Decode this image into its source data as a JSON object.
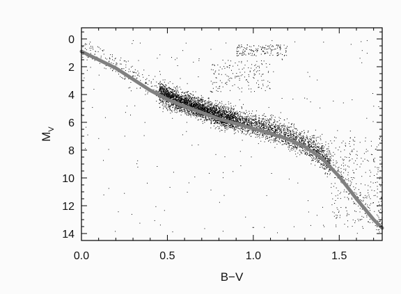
{
  "chart_data": {
    "type": "scatter",
    "title": "",
    "xlabel": "B−V",
    "ylabel": {
      "main": "M",
      "subscript": "V"
    },
    "xlim": [
      0.0,
      1.75
    ],
    "ylim": [
      14.5,
      -0.8
    ],
    "y_inverted": true,
    "x_ticks": [
      0.0,
      0.5,
      1.0,
      1.5
    ],
    "x_tick_labels": [
      "0.0",
      "0.5",
      "1.0",
      "1.5"
    ],
    "y_ticks": [
      0,
      2,
      4,
      6,
      8,
      10,
      12,
      14
    ],
    "y_tick_labels": [
      "0",
      "2",
      "4",
      "6",
      "8",
      "10",
      "12",
      "14"
    ],
    "grid": false,
    "legend": "none",
    "series": [
      {
        "kind": "points",
        "color": "#000000",
        "description_density": [
          {
            "bv": 0.0,
            "mv": 1.0
          },
          {
            "bv": 0.2,
            "mv": 2.0
          },
          {
            "bv": 0.4,
            "mv": 3.3
          },
          {
            "bv": 0.55,
            "mv": 4.6
          },
          {
            "bv": 0.7,
            "mv": 5.4
          },
          {
            "bv": 0.9,
            "mv": 6.1
          },
          {
            "bv": 1.1,
            "mv": 6.7
          },
          {
            "bv": 1.3,
            "mv": 7.6
          },
          {
            "bv": 1.45,
            "mv": 9.1
          },
          {
            "bv": 1.55,
            "mv": 10.5
          }
        ],
        "giant_clump": {
          "bv_range": [
            0.9,
            1.2
          ],
          "mv_range": [
            0.4,
            1.2
          ]
        },
        "red_giant_branch": {
          "bv_range": [
            0.75,
            1.1
          ],
          "mv_range": [
            1.5,
            3.8
          ]
        }
      },
      {
        "kind": "line",
        "color": "#808080",
        "points": [
          [
            0.0,
            0.9
          ],
          [
            0.1,
            1.5
          ],
          [
            0.2,
            2.1
          ],
          [
            0.3,
            2.9
          ],
          [
            0.4,
            3.7
          ],
          [
            0.5,
            4.35
          ],
          [
            0.6,
            4.85
          ],
          [
            0.7,
            5.3
          ],
          [
            0.8,
            5.75
          ],
          [
            0.9,
            6.1
          ],
          [
            1.0,
            6.45
          ],
          [
            1.1,
            6.8
          ],
          [
            1.2,
            7.2
          ],
          [
            1.3,
            7.75
          ],
          [
            1.4,
            8.6
          ],
          [
            1.5,
            9.9
          ],
          [
            1.6,
            11.5
          ],
          [
            1.7,
            13.0
          ],
          [
            1.75,
            13.6
          ]
        ]
      }
    ]
  },
  "colors": {
    "background": "#fbfbfb",
    "points": "#000000",
    "sequence_line": "#808080",
    "frame": "#000000"
  }
}
